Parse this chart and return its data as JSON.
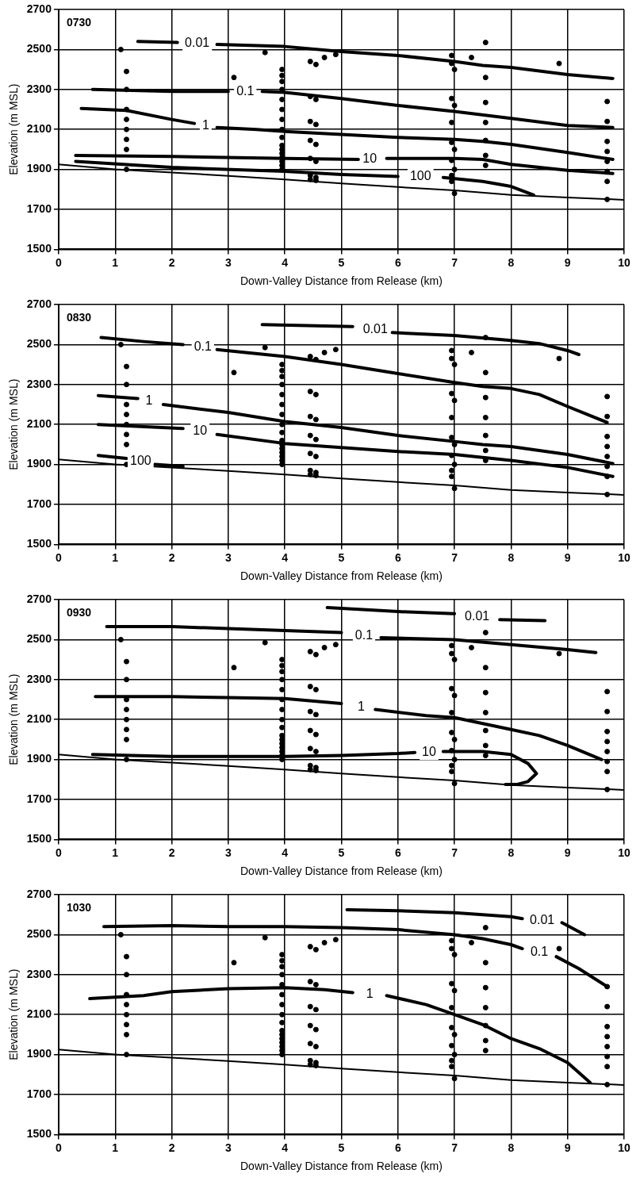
{
  "chart_data": [
    {
      "type": "line",
      "title": "0730",
      "xlabel": "Down-Valley Distance from Release (km)",
      "ylabel": "Elevation (m MSL)",
      "xlim": [
        0,
        10
      ],
      "xticks": [
        0,
        1,
        2,
        3,
        4,
        5,
        6,
        7,
        8,
        9,
        10
      ],
      "ylim": [
        1500,
        2700
      ],
      "yticks": [
        1500,
        1700,
        1900,
        2100,
        2300,
        2500,
        2700
      ],
      "grid": true,
      "series": [
        {
          "type": "line",
          "color": "#000000",
          "x": [
            0,
            1,
            2,
            3,
            4,
            5,
            6,
            7,
            8,
            9,
            10
          ],
          "values": [
            1925,
            1900,
            1885,
            1868,
            1850,
            1830,
            1812,
            1795,
            1772,
            1760,
            1748
          ]
        },
        {
          "type": "line",
          "name": "0.01",
          "color": "#000000",
          "x": [
            1.4,
            2.1,
            2.45,
            2.8,
            4,
            5,
            6,
            7,
            7.5,
            8,
            9,
            9.8
          ],
          "values": [
            2540,
            2535,
            null,
            2525,
            2515,
            2490,
            2470,
            2440,
            2420,
            2410,
            2375,
            2355
          ]
        },
        {
          "type": "line",
          "name": "0.1",
          "color": "#000000",
          "x": [
            0.6,
            2,
            3,
            3.3,
            3.6,
            4,
            5,
            6,
            7,
            8,
            9,
            9.8
          ],
          "values": [
            2300,
            2290,
            2290,
            null,
            2290,
            2285,
            2255,
            2220,
            2190,
            2155,
            2120,
            2110
          ]
        },
        {
          "type": "line",
          "name": "1",
          "color": "#000000",
          "x": [
            0.4,
            1.2,
            2,
            2.4,
            2.6,
            2.8,
            3.5,
            4,
            5,
            6,
            7,
            7.5,
            8,
            9,
            9.8
          ],
          "values": [
            2205,
            2195,
            2150,
            2130,
            null,
            2110,
            2100,
            2090,
            2075,
            2060,
            2050,
            2040,
            2025,
            1985,
            1950
          ]
        },
        {
          "type": "line",
          "name": "10",
          "color": "#000000",
          "x": [
            0.3,
            2,
            4,
            5.3,
            5.5,
            5.8,
            7,
            7.5,
            8,
            9,
            9.8
          ],
          "values": [
            1970,
            1965,
            1955,
            1950,
            null,
            1955,
            1955,
            1950,
            1925,
            1895,
            1880
          ]
        },
        {
          "type": "line",
          "name": "100",
          "color": "#000000",
          "x": [
            0.3,
            2,
            4,
            5,
            6,
            6.4,
            6.8,
            7.5,
            8,
            8.4
          ],
          "values": [
            1940,
            1910,
            1890,
            1875,
            1865,
            null,
            1860,
            1840,
            1815,
            1772
          ]
        },
        {
          "type": "scatter",
          "marker": "circle",
          "color": "#000000",
          "x": [
            1.1,
            1.2,
            1.2,
            1.2,
            1.2,
            1.2,
            1.2,
            1.2,
            1.2,
            3.1,
            3.65,
            3.95,
            3.95,
            3.95,
            3.95,
            3.95,
            3.95,
            3.95,
            3.95,
            3.95,
            3.95,
            3.95,
            3.95,
            3.95,
            3.95,
            3.95,
            3.95,
            4.45,
            4.45,
            4.45,
            4.45,
            4.45,
            4.45,
            4.45,
            4.55,
            4.55,
            4.55,
            4.55,
            4.55,
            4.55,
            4.55,
            4.7,
            4.9,
            6.95,
            6.95,
            6.95,
            6.95,
            6.95,
            6.95,
            6.95,
            6.95,
            7,
            7,
            7,
            7,
            7,
            7.3,
            7.55,
            7.55,
            7.55,
            7.55,
            7.55,
            7.55,
            7.55,
            8.85,
            9.7,
            9.7,
            9.7,
            9.7,
            9.7,
            9.7,
            9.7,
            9.7
          ],
          "values": [
            2500,
            2390,
            2300,
            2200,
            2150,
            2100,
            2050,
            2000,
            1900,
            2360,
            2485,
            2400,
            2370,
            2340,
            2300,
            2250,
            2200,
            2150,
            2100,
            2060,
            2020,
            2000,
            1980,
            1960,
            1940,
            1920,
            1900,
            2440,
            2265,
            2140,
            2045,
            1955,
            1870,
            1850,
            2425,
            2250,
            2125,
            2025,
            1940,
            1860,
            1845,
            2460,
            2475,
            2470,
            2430,
            2255,
            2135,
            2035,
            1945,
            1870,
            1840,
            2400,
            2220,
            2000,
            1900,
            1780,
            2460,
            2535,
            2360,
            2235,
            2135,
            2045,
            1970,
            1920,
            2430,
            2240,
            2140,
            2040,
            1990,
            1940,
            1890,
            1840,
            1750
          ]
        }
      ]
    },
    {
      "type": "line",
      "title": "0830",
      "xlabel": "Down-Valley Distance from Release (km)",
      "ylabel": "Elevation (m MSL)",
      "xlim": [
        0,
        10
      ],
      "xticks": [
        0,
        1,
        2,
        3,
        4,
        5,
        6,
        7,
        8,
        9,
        10
      ],
      "ylim": [
        1500,
        2700
      ],
      "yticks": [
        1500,
        1700,
        1900,
        2100,
        2300,
        2500,
        2700
      ],
      "grid": true,
      "series": [
        {
          "type": "line",
          "color": "#000000",
          "x": [
            0,
            1,
            2,
            3,
            4,
            5,
            6,
            7,
            8,
            9,
            10
          ],
          "values": [
            1925,
            1900,
            1885,
            1868,
            1850,
            1830,
            1812,
            1795,
            1772,
            1760,
            1748
          ]
        },
        {
          "type": "line",
          "name": "0.01",
          "color": "#000000",
          "x": [
            3.6,
            5.2,
            5.6,
            5.9,
            7,
            8,
            8.5,
            9,
            9.2
          ],
          "values": [
            2600,
            2590,
            null,
            2560,
            2545,
            2520,
            2505,
            2470,
            2450
          ]
        },
        {
          "type": "line",
          "name": "0.1",
          "color": "#000000",
          "x": [
            0.75,
            1.5,
            2.2,
            2.55,
            2.8,
            4,
            5,
            6,
            7,
            7.5,
            8,
            8.5,
            9,
            9.7
          ],
          "values": [
            2535,
            2515,
            2500,
            null,
            2475,
            2440,
            2400,
            2355,
            2310,
            2290,
            2280,
            2250,
            2190,
            2110
          ]
        },
        {
          "type": "line",
          "name": "1",
          "color": "#000000",
          "x": [
            0.7,
            1.4,
            1.6,
            1.85,
            3,
            4,
            5,
            6,
            7,
            7.5,
            8,
            9,
            9.8
          ],
          "values": [
            2245,
            2230,
            null,
            2200,
            2160,
            2115,
            2085,
            2045,
            2015,
            2000,
            1990,
            1950,
            1905
          ]
        },
        {
          "type": "line",
          "name": "10",
          "color": "#000000",
          "x": [
            0.7,
            2.2,
            2.5,
            2.8,
            4,
            5,
            6,
            7,
            8,
            9,
            9.8
          ],
          "values": [
            2100,
            2080,
            null,
            2050,
            2005,
            1985,
            1965,
            1950,
            1920,
            1885,
            1840
          ]
        },
        {
          "type": "line",
          "name": "100",
          "color": "#000000",
          "x": [
            0.7,
            1.2,
            1.45,
            1.7,
            2.2
          ],
          "values": [
            1945,
            1930,
            null,
            1900,
            1890
          ]
        },
        {
          "type": "scatter",
          "marker": "circle",
          "color": "#000000",
          "x": [
            1.1,
            1.2,
            1.2,
            1.2,
            1.2,
            1.2,
            1.2,
            1.2,
            1.2,
            3.1,
            3.65,
            3.95,
            3.95,
            3.95,
            3.95,
            3.95,
            3.95,
            3.95,
            3.95,
            3.95,
            3.95,
            3.95,
            3.95,
            3.95,
            3.95,
            3.95,
            3.95,
            4.45,
            4.45,
            4.45,
            4.45,
            4.45,
            4.45,
            4.45,
            4.55,
            4.55,
            4.55,
            4.55,
            4.55,
            4.55,
            4.55,
            4.7,
            4.9,
            6.95,
            6.95,
            6.95,
            6.95,
            6.95,
            6.95,
            6.95,
            6.95,
            7,
            7,
            7,
            7,
            7,
            7.3,
            7.55,
            7.55,
            7.55,
            7.55,
            7.55,
            7.55,
            7.55,
            8.85,
            9.7,
            9.7,
            9.7,
            9.7,
            9.7,
            9.7,
            9.7,
            9.7
          ],
          "values": [
            2500,
            2390,
            2300,
            2200,
            2150,
            2100,
            2050,
            2000,
            1900,
            2360,
            2485,
            2400,
            2370,
            2340,
            2300,
            2250,
            2200,
            2150,
            2100,
            2060,
            2020,
            2000,
            1980,
            1960,
            1940,
            1920,
            1900,
            2440,
            2265,
            2140,
            2045,
            1955,
            1870,
            1850,
            2425,
            2250,
            2125,
            2025,
            1940,
            1860,
            1845,
            2460,
            2475,
            2470,
            2430,
            2255,
            2135,
            2035,
            1945,
            1870,
            1840,
            2400,
            2220,
            2000,
            1900,
            1780,
            2460,
            2535,
            2360,
            2235,
            2135,
            2045,
            1970,
            1920,
            2430,
            2240,
            2140,
            2040,
            1990,
            1940,
            1890,
            1840,
            1750
          ]
        }
      ]
    },
    {
      "type": "line",
      "title": "0930",
      "xlabel": "Down-Valley Distance from Release (km)",
      "ylabel": "Elevation (m MSL)",
      "xlim": [
        0,
        10
      ],
      "xticks": [
        0,
        1,
        2,
        3,
        4,
        5,
        6,
        7,
        8,
        9,
        10
      ],
      "ylim": [
        1500,
        2700
      ],
      "yticks": [
        1500,
        1700,
        1900,
        2100,
        2300,
        2500,
        2700
      ],
      "grid": true,
      "series": [
        {
          "type": "line",
          "color": "#000000",
          "x": [
            0,
            1,
            2,
            3,
            4,
            5,
            6,
            7,
            8,
            9,
            10
          ],
          "values": [
            1925,
            1900,
            1885,
            1868,
            1850,
            1830,
            1812,
            1795,
            1772,
            1760,
            1748
          ]
        },
        {
          "type": "line",
          "name": "0.01",
          "color": "#000000",
          "x": [
            4.75,
            6,
            7,
            7.4,
            7.8,
            8.6
          ],
          "values": [
            2660,
            2640,
            2630,
            null,
            2600,
            2595
          ]
        },
        {
          "type": "line",
          "name": "0.1",
          "color": "#000000",
          "x": [
            0.85,
            2,
            3,
            4,
            5,
            5.4,
            5.7,
            7,
            8,
            9,
            9.5
          ],
          "values": [
            2565,
            2565,
            2555,
            2545,
            2535,
            null,
            2510,
            2500,
            2475,
            2450,
            2435
          ]
        },
        {
          "type": "line",
          "name": "1",
          "color": "#000000",
          "x": [
            0.65,
            2,
            3,
            4,
            5,
            5.35,
            5.6,
            6.5,
            7,
            7.5,
            8,
            8.5,
            9,
            9.6
          ],
          "values": [
            2215,
            2215,
            2210,
            2205,
            2180,
            null,
            2150,
            2120,
            2110,
            2080,
            2050,
            2020,
            1970,
            1900
          ]
        },
        {
          "type": "line",
          "name": "10",
          "color": "#000000",
          "x": [
            0.6,
            2,
            4,
            5,
            6,
            6.3,
            6.55,
            6.8,
            7.5,
            8,
            8.3,
            8.45,
            8.3,
            8.1,
            7.9
          ],
          "values": [
            1925,
            1915,
            1915,
            1920,
            1930,
            1935,
            null,
            1940,
            1940,
            1925,
            1880,
            1830,
            1790,
            1775,
            1775
          ]
        },
        {
          "type": "scatter",
          "marker": "circle",
          "color": "#000000",
          "x": [
            1.1,
            1.2,
            1.2,
            1.2,
            1.2,
            1.2,
            1.2,
            1.2,
            1.2,
            3.1,
            3.65,
            3.95,
            3.95,
            3.95,
            3.95,
            3.95,
            3.95,
            3.95,
            3.95,
            3.95,
            3.95,
            3.95,
            3.95,
            3.95,
            3.95,
            3.95,
            3.95,
            4.45,
            4.45,
            4.45,
            4.45,
            4.45,
            4.45,
            4.45,
            4.55,
            4.55,
            4.55,
            4.55,
            4.55,
            4.55,
            4.55,
            4.7,
            4.9,
            6.95,
            6.95,
            6.95,
            6.95,
            6.95,
            6.95,
            6.95,
            6.95,
            7,
            7,
            7,
            7,
            7,
            7.3,
            7.55,
            7.55,
            7.55,
            7.55,
            7.55,
            7.55,
            7.55,
            8.85,
            9.7,
            9.7,
            9.7,
            9.7,
            9.7,
            9.7,
            9.7,
            9.7
          ],
          "values": [
            2500,
            2390,
            2300,
            2200,
            2150,
            2100,
            2050,
            2000,
            1900,
            2360,
            2485,
            2400,
            2370,
            2340,
            2300,
            2250,
            2200,
            2150,
            2100,
            2060,
            2020,
            2000,
            1980,
            1960,
            1940,
            1920,
            1900,
            2440,
            2265,
            2140,
            2045,
            1955,
            1870,
            1850,
            2425,
            2250,
            2125,
            2025,
            1940,
            1860,
            1845,
            2460,
            2475,
            2470,
            2430,
            2255,
            2135,
            2035,
            1945,
            1870,
            1840,
            2400,
            2220,
            2000,
            1900,
            1780,
            2460,
            2535,
            2360,
            2235,
            2135,
            2045,
            1970,
            1920,
            2430,
            2240,
            2140,
            2040,
            1990,
            1940,
            1890,
            1840,
            1750
          ]
        }
      ]
    },
    {
      "type": "line",
      "title": "1030",
      "xlabel": "Down-Valley Distance from Release (km)",
      "ylabel": "Elevation (m MSL)",
      "xlim": [
        0,
        10
      ],
      "xticks": [
        0,
        1,
        2,
        3,
        4,
        5,
        6,
        7,
        8,
        9,
        10
      ],
      "ylim": [
        1500,
        2700
      ],
      "yticks": [
        1500,
        1700,
        1900,
        2100,
        2300,
        2500,
        2700
      ],
      "grid": true,
      "series": [
        {
          "type": "line",
          "color": "#000000",
          "x": [
            0,
            1,
            2,
            3,
            4,
            5,
            6,
            7,
            8,
            9,
            10
          ],
          "values": [
            1925,
            1900,
            1885,
            1868,
            1850,
            1830,
            1812,
            1795,
            1772,
            1760,
            1748
          ]
        },
        {
          "type": "line",
          "name": "0.01",
          "color": "#000000",
          "x": [
            5.1,
            6,
            7,
            7.5,
            8,
            8.2,
            8.55,
            8.9,
            9.3
          ],
          "values": [
            2625,
            2620,
            2610,
            2600,
            2590,
            2580,
            null,
            2560,
            2500
          ]
        },
        {
          "type": "line",
          "name": "0.1",
          "color": "#000000",
          "x": [
            0.8,
            2,
            3,
            4,
            5,
            6,
            7,
            7.5,
            8,
            8.2,
            8.5,
            8.8,
            9.2,
            9.7
          ],
          "values": [
            2540,
            2545,
            2540,
            2540,
            2535,
            2525,
            2500,
            2480,
            2450,
            2430,
            null,
            2390,
            2330,
            2240
          ]
        },
        {
          "type": "line",
          "name": "1",
          "color": "#000000",
          "x": [
            0.55,
            1.5,
            2,
            3,
            4,
            4.7,
            5.2,
            5.5,
            5.8,
            6.5,
            7,
            7.5,
            8,
            8.5,
            9,
            9.4
          ],
          "values": [
            2180,
            2195,
            2215,
            2230,
            2235,
            2225,
            2210,
            null,
            2195,
            2150,
            2100,
            2050,
            1980,
            1930,
            1860,
            1760
          ]
        },
        {
          "type": "scatter",
          "marker": "circle",
          "color": "#000000",
          "x": [
            1.1,
            1.2,
            1.2,
            1.2,
            1.2,
            1.2,
            1.2,
            1.2,
            1.2,
            3.1,
            3.65,
            3.95,
            3.95,
            3.95,
            3.95,
            3.95,
            3.95,
            3.95,
            3.95,
            3.95,
            3.95,
            3.95,
            3.95,
            3.95,
            3.95,
            3.95,
            3.95,
            4.45,
            4.45,
            4.45,
            4.45,
            4.45,
            4.45,
            4.45,
            4.55,
            4.55,
            4.55,
            4.55,
            4.55,
            4.55,
            4.55,
            4.7,
            4.9,
            6.95,
            6.95,
            6.95,
            6.95,
            6.95,
            6.95,
            6.95,
            6.95,
            7,
            7,
            7,
            7,
            7,
            7.3,
            7.55,
            7.55,
            7.55,
            7.55,
            7.55,
            7.55,
            7.55,
            8.85,
            9.7,
            9.7,
            9.7,
            9.7,
            9.7,
            9.7,
            9.7,
            9.7
          ],
          "values": [
            2500,
            2390,
            2300,
            2200,
            2150,
            2100,
            2050,
            2000,
            1900,
            2360,
            2485,
            2400,
            2370,
            2340,
            2300,
            2250,
            2200,
            2150,
            2100,
            2060,
            2020,
            2000,
            1980,
            1960,
            1940,
            1920,
            1900,
            2440,
            2265,
            2140,
            2045,
            1955,
            1870,
            1850,
            2425,
            2250,
            2125,
            2025,
            1940,
            1860,
            1845,
            2460,
            2475,
            2470,
            2430,
            2255,
            2135,
            2035,
            1945,
            1870,
            1840,
            2400,
            2220,
            2000,
            1900,
            1780,
            2460,
            2535,
            2360,
            2235,
            2135,
            2045,
            1970,
            1920,
            2430,
            2240,
            2140,
            2040,
            1990,
            1940,
            1890,
            1840,
            1750
          ]
        }
      ]
    }
  ]
}
